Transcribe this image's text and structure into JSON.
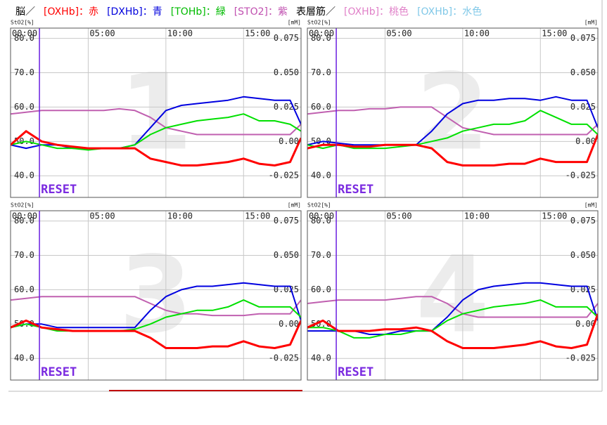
{
  "header": [
    {
      "text": "脳／",
      "color": "#000000"
    },
    {
      "text": "[OXHb]：赤",
      "color": "#ff0000"
    },
    {
      "text": "[DXHb]：青",
      "color": "#0000dd"
    },
    {
      "text": "[TOHb]：緑",
      "color": "#00bb00"
    },
    {
      "text": "[STO2]：紫",
      "color": "#c050b0"
    },
    {
      "text": "表層筋／",
      "color": "#000000"
    },
    {
      "text": "[OXHb]：桃色",
      "color": "#e080c8"
    },
    {
      "text": "[OXHb]：水色",
      "color": "#80c8e8"
    }
  ],
  "chart_data": [
    {
      "type": "line",
      "title": "1",
      "ylabel": "StO2[%]",
      "y2label": "[mM]",
      "grid": true,
      "reset": {
        "x": 1.86,
        "label": "RESET"
      },
      "xlim": [
        0,
        18.7
      ],
      "xticks": [
        {
          "value": 0,
          "label": "00:00"
        },
        {
          "value": 5,
          "label": "05:00"
        },
        {
          "value": 10,
          "label": "10:00"
        },
        {
          "value": 15,
          "label": "15:00"
        }
      ],
      "ylim": [
        33.7,
        83
      ],
      "yticks": [
        {
          "value": 40,
          "label": "40.0"
        },
        {
          "value": 50,
          "label": "50.0"
        },
        {
          "value": 60,
          "label": "60.0"
        },
        {
          "value": 70,
          "label": "70.0"
        },
        {
          "value": 80,
          "label": "80.0"
        }
      ],
      "y2lim": [
        -0.04075,
        0.0825
      ],
      "y2ticks": [
        -0.025,
        {
          "value": 0,
          "label": "0.00"
        },
        0.025,
        {
          "value": 0.05,
          "label": "0.050"
        },
        0.075
      ],
      "x": [
        0,
        1,
        2,
        3,
        4,
        5,
        6,
        7,
        8,
        9,
        10,
        11,
        12,
        13,
        14,
        15,
        16,
        17,
        18,
        18.7
      ],
      "series": [
        {
          "color": "#c060b0",
          "values": [
            58,
            58.5,
            59,
            59,
            59,
            59,
            59,
            59.5,
            59,
            57,
            54,
            53,
            52,
            52,
            52,
            52,
            52,
            52,
            52,
            55
          ]
        },
        {
          "color": "#0000e0",
          "axis": "y2",
          "values": [
            -0.0025,
            -0.005,
            -0.0025,
            -0.0025,
            -0.005,
            -0.005,
            -0.005,
            -0.005,
            -0.0025,
            0.01,
            0.0225,
            0.02625,
            0.0275,
            0.02875,
            0.03,
            0.0325,
            0.03125,
            0.03,
            0.03,
            0.0125
          ]
        },
        {
          "color": "#00e000",
          "axis": "y2",
          "values": [
            -0.0025,
            0,
            -0.0025,
            -0.005,
            -0.005,
            -0.00625,
            -0.005,
            -0.005,
            -0.0025,
            0.005,
            0.01,
            0.0125,
            0.015,
            0.01625,
            0.0175,
            0.02,
            0.015,
            0.015,
            0.0125,
            0.0075
          ]
        },
        {
          "color": "#ff0000",
          "axis": "y2",
          "values": [
            -0.0025,
            0.0075,
            0,
            -0.0025,
            -0.00375,
            -0.005,
            -0.005,
            -0.005,
            -0.005,
            -0.0125,
            -0.015,
            -0.0175,
            -0.0175,
            -0.01625,
            -0.015,
            -0.0125,
            -0.01625,
            -0.0175,
            -0.015,
            0.0025
          ]
        }
      ]
    },
    {
      "type": "line",
      "title": "2",
      "ylabel": "StO2[%]",
      "y2label": "[mM]",
      "grid": true,
      "reset": {
        "x": 1.86,
        "label": "RESET"
      },
      "xlim": [
        0,
        18.7
      ],
      "xticks": [
        {
          "value": 0,
          "label": "00:00"
        },
        {
          "value": 5,
          "label": "05:00"
        },
        {
          "value": 10,
          "label": "10:00"
        },
        {
          "value": 15,
          "label": "15:00"
        }
      ],
      "ylim": [
        33.7,
        83
      ],
      "yticks": [
        {
          "value": 40,
          "label": "40.0"
        },
        {
          "value": 50,
          "label": "50.0"
        },
        {
          "value": 60,
          "label": "60.0"
        },
        {
          "value": 70,
          "label": "70.0"
        },
        {
          "value": 80,
          "label": "80.0"
        }
      ],
      "y2lim": [
        -0.04075,
        0.0825
      ],
      "y2ticks": [
        -0.025,
        {
          "value": 0,
          "label": "0.00"
        },
        0.025,
        {
          "value": 0.05,
          "label": "0.050"
        },
        0.075
      ],
      "x": [
        0,
        1,
        2,
        3,
        4,
        5,
        6,
        7,
        8,
        9,
        10,
        11,
        12,
        13,
        14,
        15,
        16,
        17,
        18,
        18.7
      ],
      "series": [
        {
          "color": "#c060b0",
          "values": [
            58,
            58.5,
            59,
            59,
            59.5,
            59.5,
            60,
            60,
            60,
            57,
            54,
            53,
            52,
            52,
            52,
            52,
            52,
            52,
            52,
            55
          ]
        },
        {
          "color": "#0000e0",
          "axis": "y2",
          "values": [
            -0.0025,
            0,
            -0.00125,
            -0.0025,
            -0.0025,
            -0.0025,
            -0.0025,
            -0.0025,
            0.0075,
            0.02,
            0.0275,
            0.03,
            0.03,
            0.03125,
            0.03125,
            0.03,
            0.0325,
            0.03,
            0.03,
            0.01
          ]
        },
        {
          "color": "#00e000",
          "axis": "y2",
          "values": [
            -0.0025,
            -0.005,
            -0.0025,
            -0.005,
            -0.005,
            -0.005,
            -0.00375,
            -0.0025,
            0,
            0.0025,
            0.0075,
            0.01,
            0.0125,
            0.0125,
            0.015,
            0.0225,
            0.0175,
            0.0125,
            0.0125,
            0.005
          ]
        },
        {
          "color": "#ff0000",
          "axis": "y2",
          "values": [
            -0.005,
            -0.0025,
            -0.0025,
            -0.00375,
            -0.00375,
            -0.0025,
            -0.0025,
            -0.0025,
            -0.005,
            -0.015,
            -0.0175,
            -0.0175,
            -0.0175,
            -0.01625,
            -0.01625,
            -0.0125,
            -0.015,
            -0.015,
            -0.015,
            0.005
          ]
        }
      ]
    },
    {
      "type": "line",
      "title": "3",
      "ylabel": "StO2[%]",
      "y2label": "[mM]",
      "grid": true,
      "reset": {
        "x": 1.86,
        "label": "RESET"
      },
      "xlim": [
        0,
        18.7
      ],
      "xticks": [
        {
          "value": 0,
          "label": "00:00"
        },
        {
          "value": 5,
          "label": "05:00"
        },
        {
          "value": 10,
          "label": "10:00"
        },
        {
          "value": 15,
          "label": "15:00"
        }
      ],
      "ylim": [
        33.7,
        83
      ],
      "yticks": [
        {
          "value": 40,
          "label": "40.0"
        },
        {
          "value": 50,
          "label": "50.0"
        },
        {
          "value": 60,
          "label": "60.0"
        },
        {
          "value": 70,
          "label": "70.0"
        },
        {
          "value": 80,
          "label": "80.0"
        }
      ],
      "y2lim": [
        -0.04075,
        0.0825
      ],
      "y2ticks": [
        -0.025,
        {
          "value": 0,
          "label": "0.00"
        },
        0.025,
        {
          "value": 0.05,
          "label": "0.050"
        },
        0.075
      ],
      "x": [
        0,
        1,
        2,
        3,
        4,
        5,
        6,
        7,
        8,
        9,
        10,
        11,
        12,
        13,
        14,
        15,
        16,
        17,
        18,
        18.7
      ],
      "series": [
        {
          "color": "#c060b0",
          "values": [
            57,
            57.5,
            58,
            58,
            58,
            58,
            58,
            58,
            58,
            56,
            54,
            53,
            53,
            52.5,
            52.5,
            52.5,
            53,
            53,
            53,
            57
          ]
        },
        {
          "color": "#0000e0",
          "axis": "y2",
          "values": [
            -0.0025,
            0,
            0,
            -0.0025,
            -0.0025,
            -0.0025,
            -0.0025,
            -0.0025,
            -0.0025,
            0.01,
            0.02,
            0.025,
            0.0275,
            0.0275,
            0.02875,
            0.03,
            0.02875,
            0.0275,
            0.0275,
            0.0025
          ]
        },
        {
          "color": "#00e000",
          "axis": "y2",
          "values": [
            -0.0025,
            0,
            -0.0025,
            -0.005,
            -0.005,
            -0.005,
            -0.005,
            -0.005,
            -0.00375,
            0,
            0.005,
            0.0075,
            0.01,
            0.01,
            0.0125,
            0.0175,
            0.0125,
            0.0125,
            0.0125,
            0.005
          ]
        },
        {
          "color": "#ff0000",
          "axis": "y2",
          "values": [
            -0.0025,
            0.0025,
            -0.0025,
            -0.00375,
            -0.005,
            -0.005,
            -0.005,
            -0.005,
            -0.005,
            -0.01,
            -0.0175,
            -0.0175,
            -0.0175,
            -0.01625,
            -0.01625,
            -0.0125,
            -0.01625,
            -0.0175,
            -0.015,
            0.0025
          ]
        }
      ]
    },
    {
      "type": "line",
      "title": "4",
      "ylabel": "StO2[%]",
      "y2label": "[mM]",
      "grid": true,
      "reset": {
        "x": 1.86,
        "label": "RESET"
      },
      "xlim": [
        0,
        18.7
      ],
      "xticks": [
        {
          "value": 0,
          "label": "00:00"
        },
        {
          "value": 5,
          "label": "05:00"
        },
        {
          "value": 10,
          "label": "10:00"
        },
        {
          "value": 15,
          "label": "15:00"
        }
      ],
      "ylim": [
        33.7,
        83
      ],
      "yticks": [
        {
          "value": 40,
          "label": "40.0"
        },
        {
          "value": 50,
          "label": "50.0"
        },
        {
          "value": 60,
          "label": "60.0"
        },
        {
          "value": 70,
          "label": "70.0"
        },
        {
          "value": 80,
          "label": "80.0"
        }
      ],
      "y2lim": [
        -0.04075,
        0.0825
      ],
      "y2ticks": [
        -0.025,
        {
          "value": 0,
          "label": "0.00"
        },
        0.025,
        {
          "value": 0.05,
          "label": "0.050"
        },
        0.075
      ],
      "x": [
        0,
        1,
        2,
        3,
        4,
        5,
        6,
        7,
        8,
        9,
        10,
        11,
        12,
        13,
        14,
        15,
        16,
        17,
        18,
        18.7
      ],
      "series": [
        {
          "color": "#c060b0",
          "values": [
            56,
            56.5,
            57,
            57,
            57,
            57,
            57.5,
            58,
            58,
            56,
            53,
            52,
            52,
            52,
            52,
            52,
            52,
            52,
            52,
            56
          ]
        },
        {
          "color": "#0000e0",
          "axis": "y2",
          "values": [
            -0.005,
            -0.005,
            -0.005,
            -0.005,
            -0.0075,
            -0.0075,
            -0.005,
            -0.005,
            -0.005,
            0.005,
            0.0175,
            0.025,
            0.0275,
            0.02875,
            0.03,
            0.03,
            0.02875,
            0.0275,
            0.0275,
            0.0025
          ]
        },
        {
          "color": "#00e000",
          "axis": "y2",
          "values": [
            -0.0025,
            -0.0025,
            -0.005,
            -0.01,
            -0.01,
            -0.0075,
            -0.0075,
            -0.005,
            -0.005,
            0.0025,
            0.0075,
            0.01,
            0.0125,
            0.01375,
            0.015,
            0.0175,
            0.0125,
            0.0125,
            0.0125,
            0.005
          ]
        },
        {
          "color": "#ff0000",
          "axis": "y2",
          "values": [
            -0.0025,
            0.0025,
            -0.005,
            -0.005,
            -0.005,
            -0.00375,
            -0.00375,
            -0.0025,
            -0.005,
            -0.0125,
            -0.0175,
            -0.0175,
            -0.0175,
            -0.01625,
            -0.015,
            -0.0125,
            -0.01625,
            -0.0175,
            -0.015,
            0.0075
          ]
        }
      ]
    }
  ]
}
